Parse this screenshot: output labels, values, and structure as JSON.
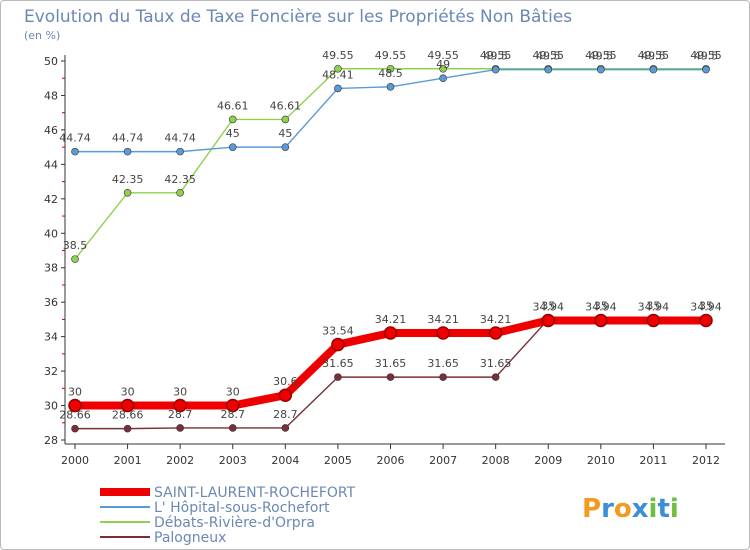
{
  "chart_data": {
    "type": "line",
    "title": "Evolution du Taux de Taxe Foncière sur les Propriétés Non Bâties",
    "subtitle": "(en %)",
    "x": [
      "2000",
      "2001",
      "2002",
      "2003",
      "2004",
      "2005",
      "2006",
      "2007",
      "2008",
      "2009",
      "2010",
      "2011",
      "2012"
    ],
    "ylim": [
      28,
      50
    ],
    "yticks": [
      "28",
      "30",
      "32",
      "34",
      "36",
      "38",
      "40",
      "42",
      "44",
      "46",
      "48",
      "50"
    ],
    "grid": false,
    "series": [
      {
        "name": "SAINT-LAURENT-ROCHEFORT",
        "color": "#ee0000",
        "values": [
          30,
          30,
          30,
          30,
          30.6,
          33.54,
          34.21,
          34.21,
          34.21,
          34.94,
          34.94,
          34.94,
          34.94
        ],
        "labels": [
          "30",
          "30",
          "30",
          "30",
          "30.6",
          "33.54",
          "34.21",
          "34.21",
          "34.21",
          "34.94",
          "34.94",
          "34.94",
          "34.94"
        ]
      },
      {
        "name": "L' Hôpital-sous-Rochefort",
        "color": "#5b9bd5",
        "values": [
          44.74,
          44.74,
          44.74,
          45,
          45,
          48.41,
          48.5,
          49,
          49.5,
          49.5,
          49.5,
          49.5,
          49.5
        ],
        "labels": [
          "44.74",
          "44.74",
          "44.74",
          "45",
          "45",
          "48.41",
          "48.5",
          "49",
          "49.5",
          "49.5",
          "49.5",
          "49.5",
          "49.5"
        ]
      },
      {
        "name": "Débats-Rivière-d'Orpra",
        "color": "#8fd14f",
        "values": [
          38.5,
          42.35,
          42.35,
          46.61,
          46.61,
          49.55,
          49.55,
          49.55,
          49.55,
          49.55,
          49.55,
          49.55,
          49.55
        ],
        "labels": [
          "38.5",
          "42.35",
          "42.35",
          "46.61",
          "46.61",
          "49.55",
          "49.55",
          "49.55",
          "49.55",
          "49.55",
          "49.55",
          "49.55",
          "49.55"
        ]
      },
      {
        "name": "Palogneux",
        "color": "#7a2e36",
        "values": [
          28.66,
          28.66,
          28.7,
          28.7,
          28.7,
          31.65,
          31.65,
          31.65,
          31.65,
          35,
          35,
          35,
          35
        ],
        "labels": [
          "28.66",
          "28.66",
          "28.7",
          "28.7",
          "28.7",
          "31.65",
          "31.65",
          "31.65",
          "31.65",
          "35",
          "35",
          "35",
          "35"
        ]
      }
    ]
  },
  "brand": {
    "letters": [
      "P",
      "r",
      "o",
      "x",
      "i",
      "t",
      "i"
    ],
    "colors": [
      "#f29b1f",
      "#3c8fd6",
      "#f29b1f",
      "#3c8fd6",
      "#6cbf3f",
      "#3c8fd6",
      "#6cbf3f"
    ]
  }
}
